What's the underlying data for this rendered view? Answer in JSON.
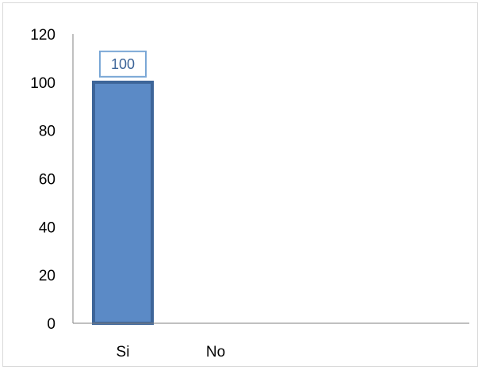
{
  "chart_data": {
    "type": "bar",
    "categories": [
      "Si",
      "No"
    ],
    "values": [
      100,
      0
    ],
    "data_labels": [
      "100",
      ""
    ],
    "title": "",
    "xlabel": "",
    "ylabel": "",
    "ylim": [
      0,
      120
    ],
    "yticks": [
      0,
      20,
      40,
      60,
      80,
      100,
      120
    ],
    "grid": false,
    "legend": "none"
  },
  "colors": {
    "bar_fill": "#5b8ac6",
    "bar_border": "#3d6599",
    "label_text": "#3d6599",
    "label_border": "#7aa7d6",
    "axis": "#808080",
    "frame": "#d9d9d9"
  }
}
